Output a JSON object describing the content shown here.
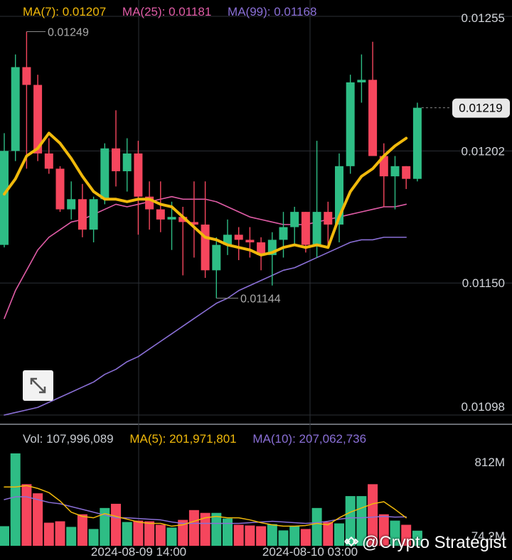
{
  "legend": {
    "ma7": "MA(7): 0.01207",
    "ma25": "MA(25): 0.01181",
    "ma99": "MA(99): 0.01168",
    "vol": "Vol: 107,996,089",
    "vol_ma5": "MA(5): 201,971,801",
    "vol_ma10": "MA(10): 207,062,736"
  },
  "colors": {
    "up": "#2ebd85",
    "down": "#f6465d",
    "ma7": "#f0b90b",
    "ma25": "#e05ca6",
    "ma99": "#8a6fd6",
    "vol_ma5": "#f0b90b",
    "vol_ma10": "#8a6fd6",
    "grid": "#2b2f36",
    "axis_text": "#d0d3d8"
  },
  "watermark": "@Crypto Strategist",
  "chart_data": {
    "type": "candlestick",
    "price_ticks": [
      "0.01255",
      "0.01202",
      "0.01150",
      "0.01098"
    ],
    "current_price": "0.01219",
    "high_marker": "0.01249",
    "low_marker": "0.01144",
    "x_tick_labels": [
      "2024-08-09 14:00",
      "2024-08-10 03:00"
    ],
    "volume_ticks": [
      "812M",
      "74.2M"
    ],
    "ylim": [
      0.01098,
      0.01255
    ],
    "candles": [
      {
        "o": 0.01165,
        "h": 0.01209,
        "l": 0.01164,
        "c": 0.01202,
        "v": 140
      },
      {
        "o": 0.01202,
        "h": 0.0124,
        "l": 0.01198,
        "c": 0.01235,
        "v": 660
      },
      {
        "o": 0.01235,
        "h": 0.01249,
        "l": 0.01195,
        "c": 0.01228,
        "v": 440
      },
      {
        "o": 0.01228,
        "h": 0.01232,
        "l": 0.01198,
        "c": 0.01201,
        "v": 375
      },
      {
        "o": 0.01201,
        "h": 0.01207,
        "l": 0.01193,
        "c": 0.01195,
        "v": 165
      },
      {
        "o": 0.01195,
        "h": 0.01196,
        "l": 0.01178,
        "c": 0.01179,
        "v": 175
      },
      {
        "o": 0.01179,
        "h": 0.0119,
        "l": 0.01175,
        "c": 0.01183,
        "v": 135
      },
      {
        "o": 0.01183,
        "h": 0.01189,
        "l": 0.01168,
        "c": 0.01171,
        "v": 225
      },
      {
        "o": 0.01171,
        "h": 0.01184,
        "l": 0.01166,
        "c": 0.01183,
        "v": 120
      },
      {
        "o": 0.01183,
        "h": 0.01205,
        "l": 0.01181,
        "c": 0.01203,
        "v": 270
      },
      {
        "o": 0.01203,
        "h": 0.01218,
        "l": 0.01188,
        "c": 0.01194,
        "v": 300
      },
      {
        "o": 0.01194,
        "h": 0.01207,
        "l": 0.01186,
        "c": 0.01201,
        "v": 170
      },
      {
        "o": 0.01201,
        "h": 0.01206,
        "l": 0.01169,
        "c": 0.01184,
        "v": 180
      },
      {
        "o": 0.01184,
        "h": 0.0119,
        "l": 0.01171,
        "c": 0.01179,
        "v": 175
      },
      {
        "o": 0.01179,
        "h": 0.0119,
        "l": 0.0117,
        "c": 0.01175,
        "v": 150
      },
      {
        "o": 0.01175,
        "h": 0.01182,
        "l": 0.01163,
        "c": 0.01176,
        "v": 130
      },
      {
        "o": 0.01176,
        "h": 0.0118,
        "l": 0.01153,
        "c": 0.01174,
        "v": 185
      },
      {
        "o": 0.01174,
        "h": 0.0119,
        "l": 0.0116,
        "c": 0.01173,
        "v": 255
      },
      {
        "o": 0.01173,
        "h": 0.0119,
        "l": 0.01152,
        "c": 0.01155,
        "v": 235
      },
      {
        "o": 0.01155,
        "h": 0.01168,
        "l": 0.01144,
        "c": 0.01165,
        "v": 235
      },
      {
        "o": 0.01165,
        "h": 0.01175,
        "l": 0.01161,
        "c": 0.01169,
        "v": 195
      },
      {
        "o": 0.01169,
        "h": 0.01172,
        "l": 0.01159,
        "c": 0.01167,
        "v": 150
      },
      {
        "o": 0.01167,
        "h": 0.01172,
        "l": 0.0116,
        "c": 0.01166,
        "v": 145
      },
      {
        "o": 0.01166,
        "h": 0.01168,
        "l": 0.01155,
        "c": 0.01161,
        "v": 140
      },
      {
        "o": 0.01161,
        "h": 0.0117,
        "l": 0.01149,
        "c": 0.01167,
        "v": 155
      },
      {
        "o": 0.01167,
        "h": 0.01178,
        "l": 0.0116,
        "c": 0.01172,
        "v": 110
      },
      {
        "o": 0.01172,
        "h": 0.0118,
        "l": 0.01165,
        "c": 0.01178,
        "v": 140
      },
      {
        "o": 0.01178,
        "h": 0.01178,
        "l": 0.01162,
        "c": 0.01165,
        "v": 120
      },
      {
        "o": 0.01165,
        "h": 0.01206,
        "l": 0.0116,
        "c": 0.01178,
        "v": 270
      },
      {
        "o": 0.01178,
        "h": 0.01182,
        "l": 0.01165,
        "c": 0.01173,
        "v": 170
      },
      {
        "o": 0.01173,
        "h": 0.01201,
        "l": 0.01166,
        "c": 0.01196,
        "v": 160
      },
      {
        "o": 0.01196,
        "h": 0.01232,
        "l": 0.01193,
        "c": 0.01229,
        "v": 355
      },
      {
        "o": 0.01229,
        "h": 0.0124,
        "l": 0.01221,
        "c": 0.0123,
        "v": 355
      },
      {
        "o": 0.0123,
        "h": 0.01245,
        "l": 0.012,
        "c": 0.012,
        "v": 440
      },
      {
        "o": 0.012,
        "h": 0.01205,
        "l": 0.0118,
        "c": 0.01192,
        "v": 225
      },
      {
        "o": 0.01192,
        "h": 0.012,
        "l": 0.01179,
        "c": 0.01196,
        "v": 180
      },
      {
        "o": 0.01196,
        "h": 0.01196,
        "l": 0.01187,
        "c": 0.01191,
        "v": 150
      },
      {
        "o": 0.01191,
        "h": 0.01221,
        "l": 0.0119,
        "c": 0.01219,
        "v": 108
      }
    ],
    "ma7": [
      0.01185,
      0.01191,
      0.012,
      0.01203,
      0.01209,
      0.01205,
      0.01199,
      0.01192,
      0.01186,
      0.01183,
      0.01183,
      0.01182,
      0.01183,
      0.01183,
      0.01181,
      0.0118,
      0.01176,
      0.01172,
      0.01168,
      0.01167,
      0.01165,
      0.01164,
      0.01163,
      0.01161,
      0.01162,
      0.01164,
      0.01165,
      0.01164,
      0.01165,
      0.01164,
      0.01176,
      0.01186,
      0.01192,
      0.01195,
      0.012,
      0.01204,
      0.01207
    ],
    "ma25": [
      0.01136,
      0.01147,
      0.01155,
      0.01163,
      0.01168,
      0.01171,
      0.01174,
      0.01175,
      0.01177,
      0.01179,
      0.01181,
      0.0118,
      0.01181,
      0.01182,
      0.01183,
      0.01184,
      0.01183,
      0.01183,
      0.01183,
      0.01182,
      0.0118,
      0.01178,
      0.01176,
      0.01175,
      0.01174,
      0.01173,
      0.01173,
      0.01173,
      0.01174,
      0.01175,
      0.01176,
      0.01177,
      0.01178,
      0.01179,
      0.0118,
      0.0118,
      0.01181
    ],
    "ma99": [
      0.01098,
      0.01099,
      0.011,
      0.01101,
      0.01103,
      0.01105,
      0.01107,
      0.01109,
      0.01111,
      0.01114,
      0.01116,
      0.01119,
      0.01121,
      0.01124,
      0.01127,
      0.0113,
      0.01133,
      0.01136,
      0.01139,
      0.01142,
      0.01144,
      0.01147,
      0.01149,
      0.01151,
      0.01153,
      0.01155,
      0.01156,
      0.01158,
      0.0116,
      0.01162,
      0.01164,
      0.01166,
      0.01167,
      0.01167,
      0.01168,
      0.01168,
      0.01168
    ],
    "vol_ma5": [
      420,
      420,
      430,
      410,
      380,
      320,
      240,
      210,
      200,
      230,
      210,
      190,
      170,
      160,
      160,
      140,
      150,
      175,
      200,
      210,
      200,
      200,
      185,
      165,
      150,
      140,
      140,
      145,
      160,
      150,
      200,
      240,
      270,
      300,
      315,
      260,
      200
    ],
    "vol_ma10": [
      330,
      350,
      350,
      330,
      310,
      300,
      280,
      260,
      240,
      220,
      200,
      200,
      195,
      190,
      185,
      170,
      160,
      160,
      160,
      160,
      160,
      160,
      165,
      170,
      175,
      170,
      165,
      160,
      165,
      175,
      190,
      200,
      200,
      205,
      210,
      205,
      207
    ]
  }
}
